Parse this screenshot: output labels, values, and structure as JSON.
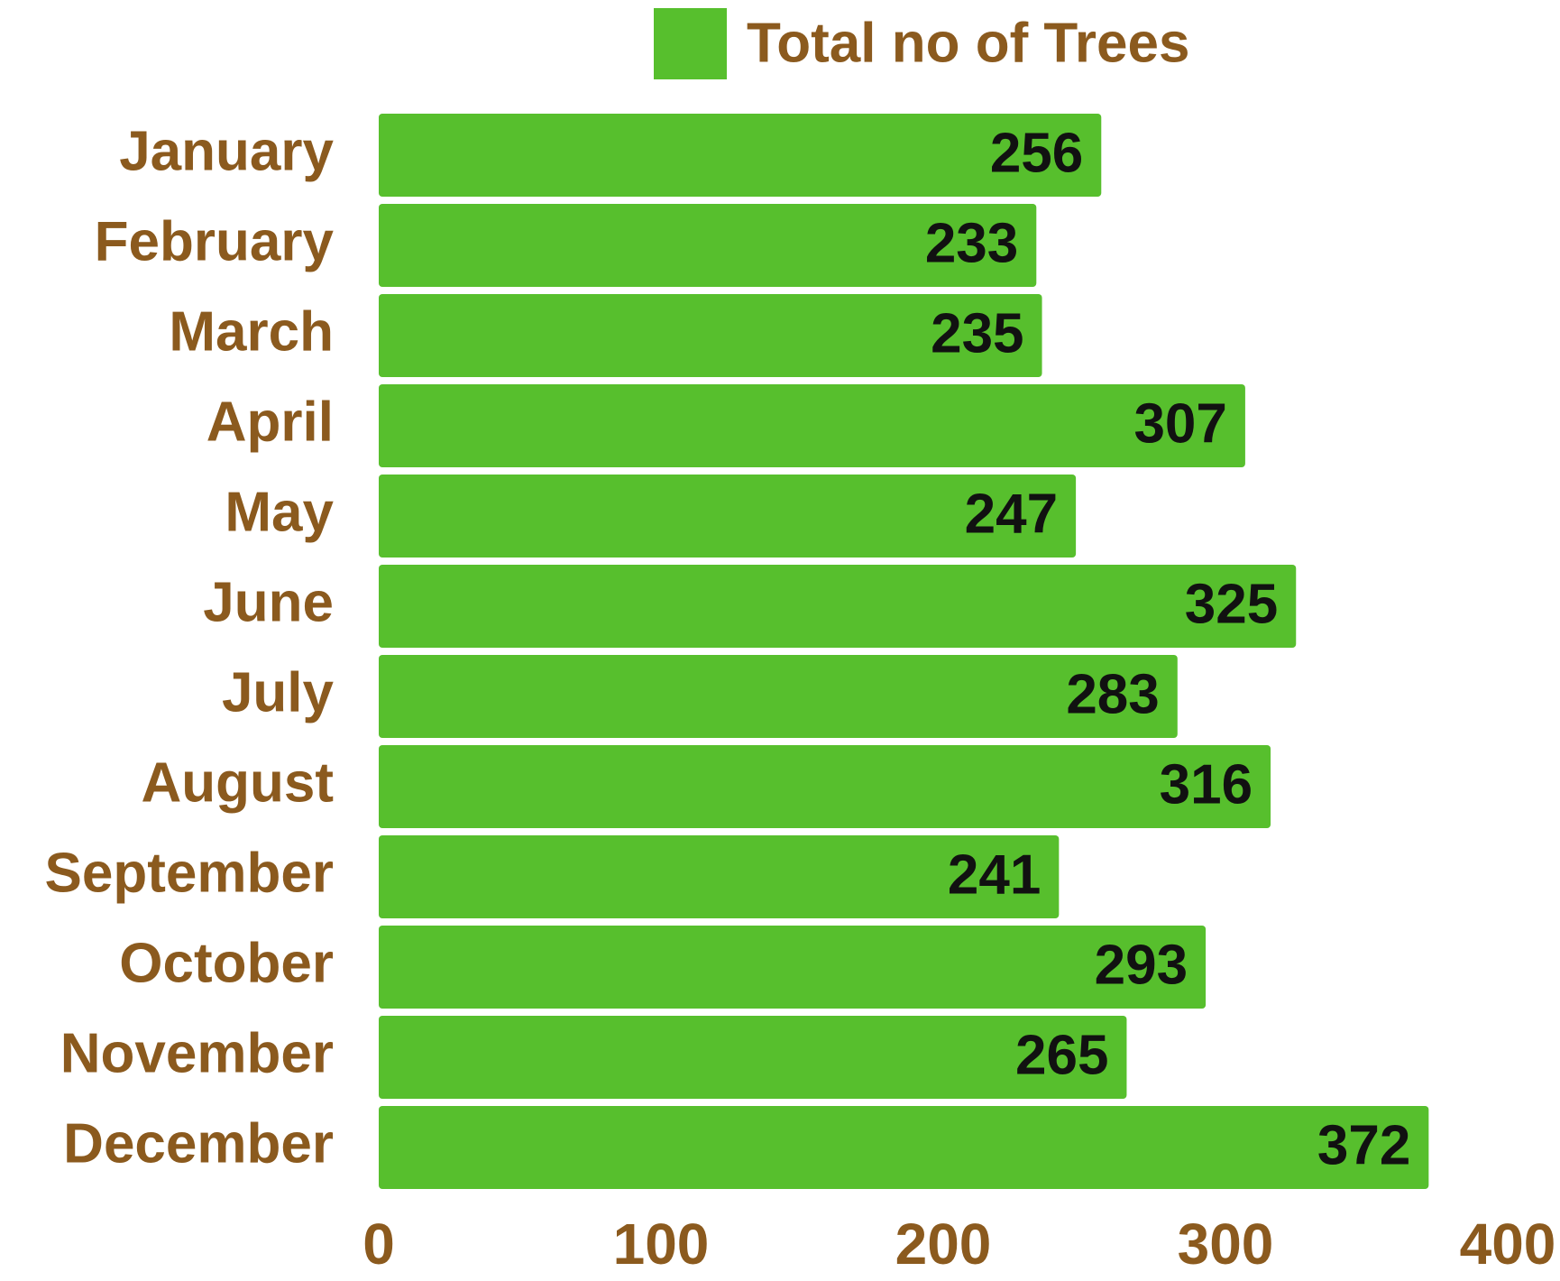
{
  "chart_data": {
    "type": "bar",
    "orientation": "horizontal",
    "categories": [
      "January",
      "February",
      "March",
      "April",
      "May",
      "June",
      "July",
      "August",
      "September",
      "October",
      "November",
      "December"
    ],
    "series": [
      {
        "name": "Total no of Trees",
        "color": "#57bf2d",
        "values": [
          256,
          233,
          235,
          307,
          247,
          325,
          283,
          316,
          241,
          293,
          265,
          372
        ]
      }
    ],
    "xlim": [
      0,
      400
    ],
    "xticks": [
      0,
      100,
      200,
      300,
      400
    ],
    "grid": false,
    "legend": "top"
  }
}
